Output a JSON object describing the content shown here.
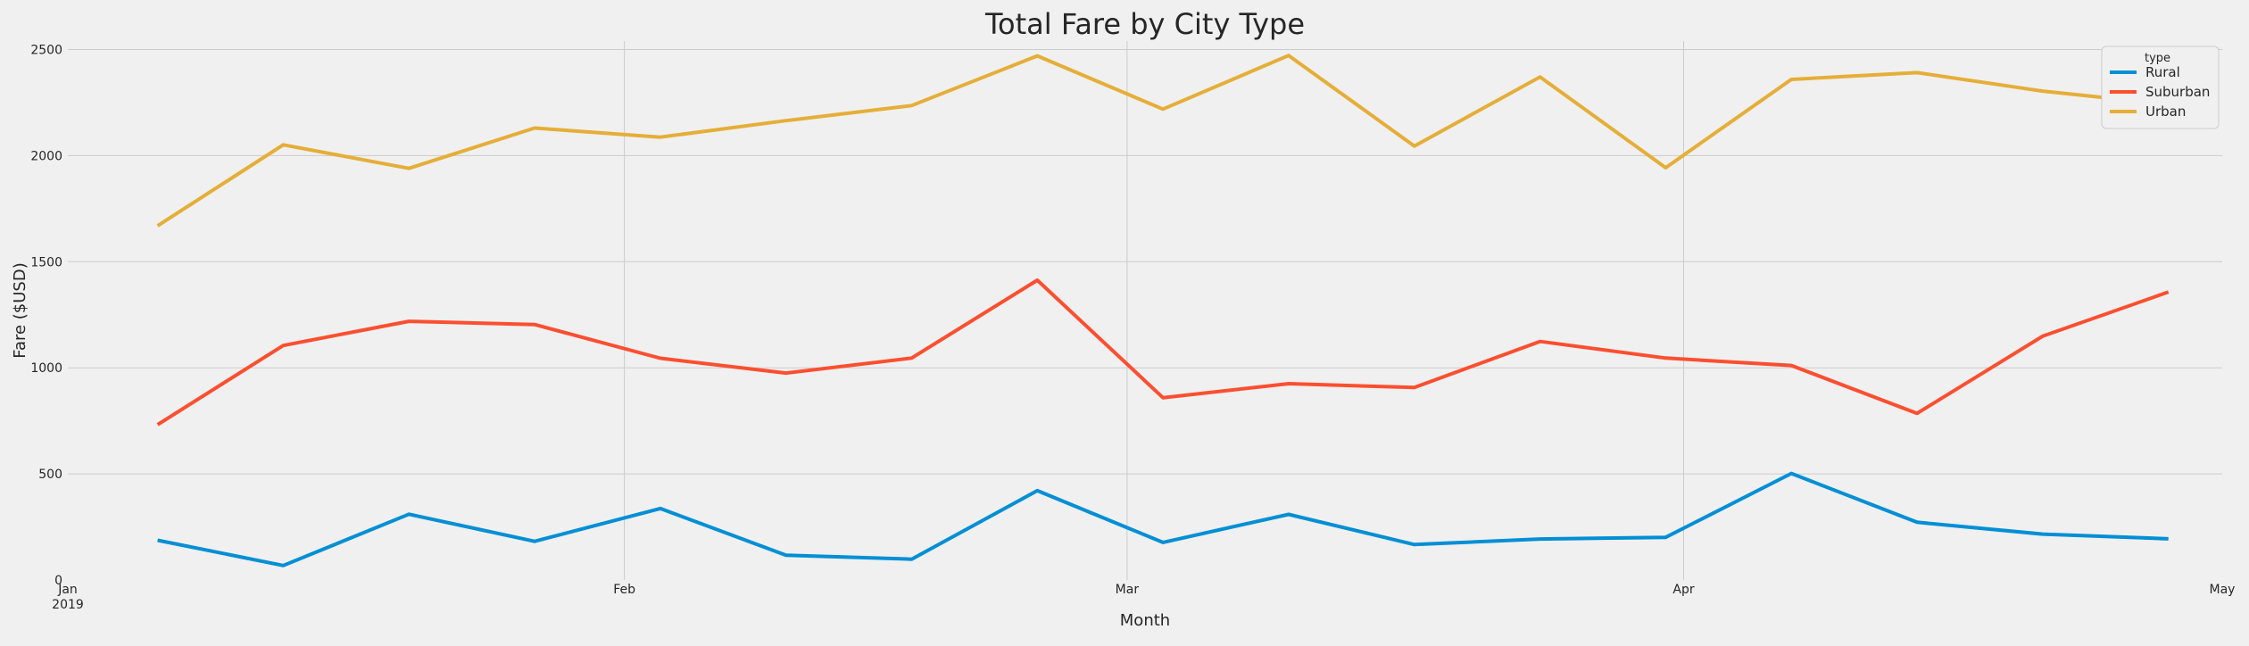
{
  "chart_data": {
    "type": "line",
    "title": "Total Fare by City Type",
    "xlabel": "Month",
    "ylabel": "Fare ($USD)",
    "x": [
      "2019-01-06",
      "2019-01-13",
      "2019-01-20",
      "2019-01-27",
      "2019-02-03",
      "2019-02-10",
      "2019-02-17",
      "2019-02-24",
      "2019-03-03",
      "2019-03-10",
      "2019-03-17",
      "2019-03-24",
      "2019-03-31",
      "2019-04-07",
      "2019-04-14",
      "2019-04-21",
      "2019-04-28"
    ],
    "xlim": [
      "2019-01-01",
      "2019-05-01"
    ],
    "ylim": [
      0,
      2540
    ],
    "x_ticks": [
      {
        "label": "Jan",
        "sublabel": "2019",
        "date": "2019-01-01"
      },
      {
        "label": "Feb",
        "sublabel": "",
        "date": "2019-02-01"
      },
      {
        "label": "Mar",
        "sublabel": "",
        "date": "2019-03-01"
      },
      {
        "label": "Apr",
        "sublabel": "",
        "date": "2019-04-01"
      },
      {
        "label": "May",
        "sublabel": "",
        "date": "2019-05-01"
      }
    ],
    "y_ticks": [
      0,
      500,
      1000,
      1500,
      2000,
      2500
    ],
    "grid": true,
    "legend": {
      "title": "type",
      "position": "top-right"
    },
    "series": [
      {
        "name": "Rural",
        "color": "#008fd5",
        "values": [
          187,
          68,
          310,
          182,
          337,
          117,
          98,
          421,
          177,
          309,
          167,
          193,
          201,
          502,
          272,
          216,
          194
        ]
      },
      {
        "name": "Suburban",
        "color": "#fc4f30",
        "values": [
          732,
          1105,
          1219,
          1204,
          1045,
          975,
          1046,
          1413,
          859,
          925,
          907,
          1124,
          1046,
          1011,
          785,
          1149,
          1357
        ]
      },
      {
        "name": "Urban",
        "color": "#e5ae38",
        "values": [
          1669,
          2051,
          1940,
          2130,
          2087,
          2165,
          2236,
          2470,
          2219,
          2472,
          2045,
          2371,
          1943,
          2359,
          2391,
          2304,
          2242
        ]
      }
    ]
  }
}
